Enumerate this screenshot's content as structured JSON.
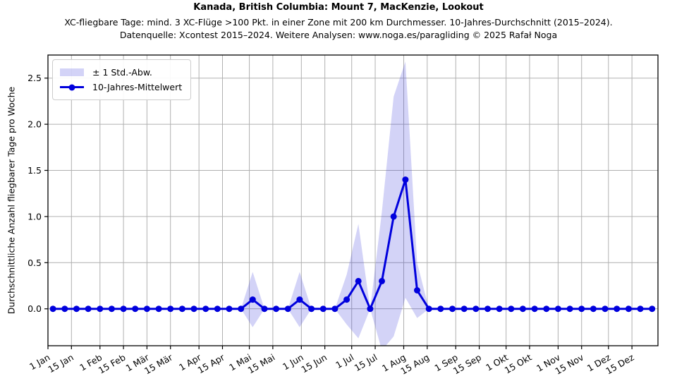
{
  "chart_data": {
    "type": "line",
    "title": "Kanada, British Columbia: Mount 7, MacKenzie, Lookout",
    "subtitle": "XC-fliegbare Tage: mind. 3 XC-Flüge >100 Pkt. in einer Zone mit 200 km Durchmesser. 10-Jahres-Durchschnitt (2015–2024).",
    "source": "Datenquelle: Xcontest 2015–2024. Weitere Analysen: www.noga.es/paragliding © 2025 Rafał Noga",
    "ylabel": "Durchschnittliche Anzahl fliegbarer Tage pro Woche",
    "legend": {
      "band": "± 1 Std.-Abw.",
      "mean": "10-Jahres-Mittelwert"
    },
    "x_tick_labels": [
      "1 Jan",
      "15 Jan",
      "1 Feb",
      "15 Feb",
      "1 Mär",
      "15 Mär",
      "1 Apr",
      "15 Apr",
      "1 Mai",
      "15 Mai",
      "1 Jun",
      "15 Jun",
      "1 Jul",
      "15 Jul",
      "1 Aug",
      "15 Aug",
      "1 Sep",
      "15 Sep",
      "1 Okt",
      "15 Okt",
      "1 Nov",
      "15 Nov",
      "1 Dez",
      "15 Dez"
    ],
    "x_tick_days": [
      0,
      14,
      31,
      45,
      59,
      73,
      90,
      104,
      120,
      134,
      151,
      165,
      181,
      195,
      212,
      226,
      243,
      257,
      273,
      287,
      304,
      318,
      334,
      348
    ],
    "x_day_range": [
      0,
      363.5
    ],
    "week_first_day": 3,
    "week_day_step": 7,
    "weeks": 52,
    "y_ticks": [
      0.0,
      0.5,
      1.0,
      1.5,
      2.0,
      2.5
    ],
    "y_tick_labels": [
      "0.0",
      "0.5",
      "1.0",
      "1.5",
      "2.0",
      "2.5"
    ],
    "ylim": [
      -0.4,
      2.75
    ],
    "grid": true,
    "legend_position": "upper-left",
    "series": [
      {
        "name": "10-Jahres-Mittelwert",
        "values": [
          0,
          0,
          0,
          0,
          0,
          0,
          0,
          0,
          0,
          0,
          0,
          0,
          0,
          0,
          0,
          0,
          0,
          0.1,
          0,
          0,
          0,
          0.1,
          0,
          0,
          0,
          0.1,
          0.3,
          0,
          0.3,
          1.0,
          1.4,
          0.2,
          0,
          0,
          0,
          0,
          0,
          0,
          0,
          0,
          0,
          0,
          0,
          0,
          0,
          0,
          0,
          0,
          0,
          0,
          0,
          0
        ]
      },
      {
        "name": "± 1 Std.-Abw. (Standardabweichung)",
        "values": [
          0,
          0,
          0,
          0,
          0,
          0,
          0,
          0,
          0,
          0,
          0,
          0,
          0,
          0,
          0,
          0,
          0,
          0.3,
          0,
          0,
          0,
          0.3,
          0,
          0,
          0,
          0.27,
          0.62,
          0,
          0.75,
          1.3,
          1.28,
          0.3,
          0,
          0,
          0,
          0,
          0,
          0,
          0,
          0,
          0,
          0,
          0,
          0,
          0,
          0,
          0,
          0,
          0,
          0,
          0,
          0
        ]
      }
    ],
    "colors": {
      "line": "#0000dd",
      "band": "rgba(55,55,220,0.22)",
      "grid": "#b0b0b0",
      "spine": "#000000"
    }
  }
}
